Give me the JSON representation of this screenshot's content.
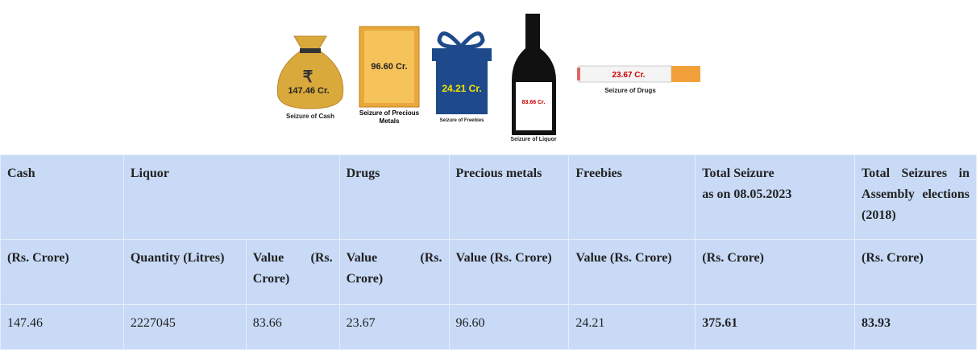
{
  "infographic": {
    "items": [
      {
        "value": "147.46 Cr.",
        "caption": "Seizure of Cash"
      },
      {
        "value": "96.60 Cr.",
        "caption": "Seizure of Precious Metals"
      },
      {
        "value": "24.21 Cr.",
        "caption": "Seizure of Freebies"
      },
      {
        "value": "83.66 Cr.",
        "caption": "Seizure of Liquor"
      },
      {
        "value": "23.67 Cr.",
        "caption": "Seizure of Drugs"
      }
    ]
  },
  "table": {
    "header": [
      "Cash",
      "Liquor",
      "Drugs",
      "Precious metals",
      "Freebies",
      "Total Seizure",
      "Total Seizures in Assembly elections (2018)"
    ],
    "header_note": "as on 08.05.2023",
    "subheader": [
      "(Rs. Crore)",
      "Quantity (Litres)",
      "Value (Rs. Crore)",
      "Value (Rs. Crore)",
      "Value (Rs. Crore)",
      "Value (Rs. Crore)",
      "(Rs. Crore)",
      "(Rs. Crore)"
    ],
    "rows": [
      [
        "147.46",
        "2227045",
        "83.66",
        "23.67",
        "96.60",
        "24.21",
        "375.61",
        "83.93"
      ]
    ]
  }
}
